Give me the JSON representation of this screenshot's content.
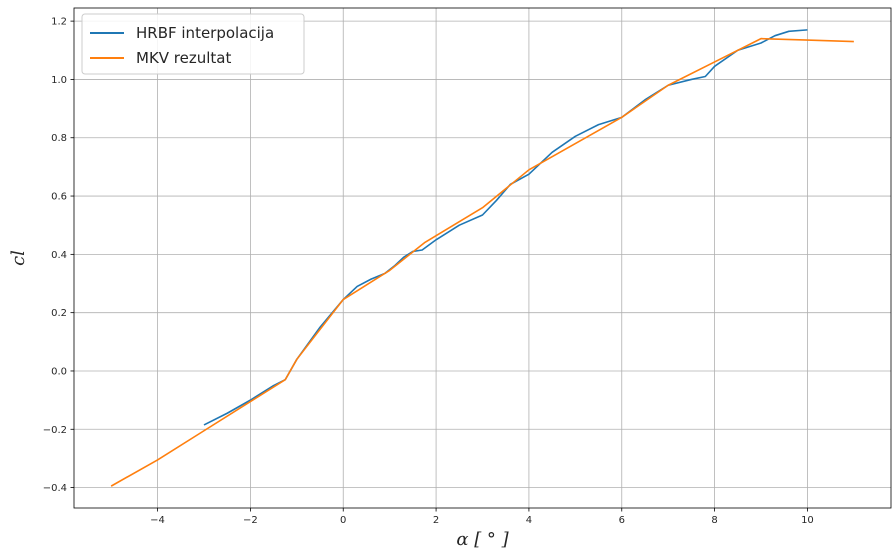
{
  "chart_data": {
    "type": "line",
    "title": "",
    "xlabel": "α [ ° ]",
    "ylabel": "cl",
    "xlim": [
      -5.8,
      11.8
    ],
    "ylim": [
      -0.47,
      1.245
    ],
    "x_ticks": [
      -4,
      -2,
      0,
      2,
      4,
      6,
      8,
      10
    ],
    "x_tick_labels": [
      "−4",
      "−2",
      "0",
      "2",
      "4",
      "6",
      "8",
      "10"
    ],
    "y_ticks": [
      -0.4,
      -0.2,
      0.0,
      0.2,
      0.4,
      0.6,
      0.8,
      1.0,
      1.2
    ],
    "y_tick_labels": [
      "−0.4",
      "−0.2",
      "0.0",
      "0.2",
      "0.4",
      "0.6",
      "0.8",
      "1.0",
      "1.2"
    ],
    "grid": true,
    "legend_position": "top-left",
    "series": [
      {
        "name": "HRBF interpolacija",
        "color": "#1f77b4",
        "x": [
          -3.0,
          -2.5,
          -2.0,
          -1.5,
          -1.25,
          -1.0,
          -0.5,
          0.0,
          0.3,
          0.6,
          0.9,
          1.1,
          1.3,
          1.5,
          1.7,
          2.0,
          2.5,
          3.0,
          3.3,
          3.6,
          4.0,
          4.5,
          5.0,
          5.5,
          6.0,
          6.5,
          7.0,
          7.5,
          7.8,
          8.0,
          8.5,
          9.0,
          9.3,
          9.6,
          10.0
        ],
        "y": [
          -0.185,
          -0.145,
          -0.1,
          -0.05,
          -0.03,
          0.04,
          0.15,
          0.245,
          0.29,
          0.315,
          0.335,
          0.36,
          0.39,
          0.41,
          0.415,
          0.45,
          0.5,
          0.535,
          0.585,
          0.64,
          0.675,
          0.75,
          0.805,
          0.845,
          0.87,
          0.93,
          0.98,
          1.0,
          1.01,
          1.045,
          1.1,
          1.125,
          1.15,
          1.165,
          1.17
        ]
      },
      {
        "name": "MKV rezultat",
        "color": "#ff7f0e",
        "x": [
          -5.0,
          -4.0,
          -3.0,
          -2.0,
          -1.25,
          -1.0,
          0.0,
          1.0,
          1.75,
          3.0,
          4.0,
          5.0,
          6.0,
          7.0,
          8.0,
          9.0,
          10.0,
          11.0
        ],
        "y": [
          -0.395,
          -0.305,
          -0.205,
          -0.105,
          -0.03,
          0.04,
          0.245,
          0.345,
          0.44,
          0.56,
          0.69,
          0.78,
          0.87,
          0.98,
          1.06,
          1.14,
          1.135,
          1.13
        ]
      }
    ]
  }
}
